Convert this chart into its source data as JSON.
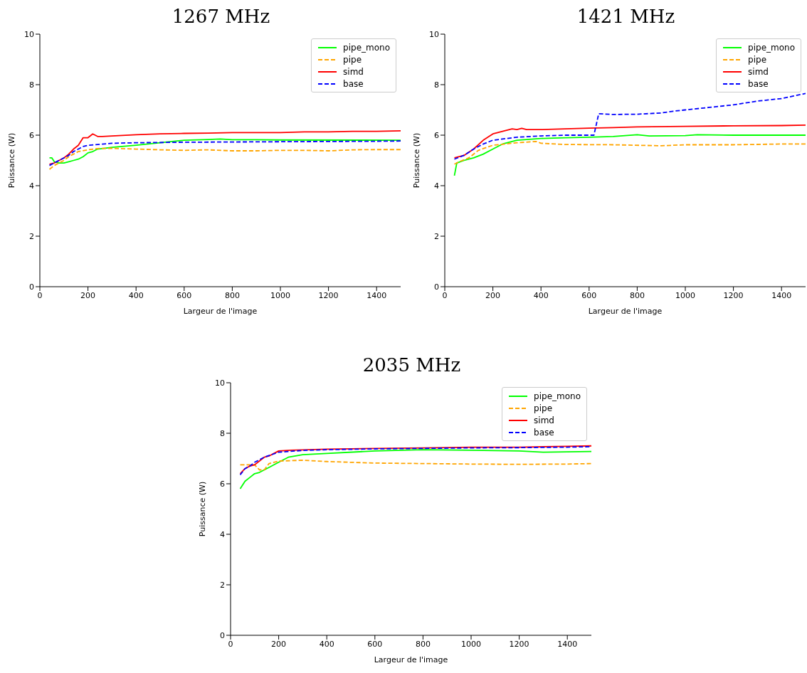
{
  "chart_data": [
    {
      "type": "line",
      "title": "1267 MHz",
      "xlabel": "Largeur de l'image",
      "ylabel": "Puissance (W)",
      "xlim": [
        0,
        1500
      ],
      "xticks": [
        0,
        200,
        400,
        600,
        800,
        1000,
        1200,
        1400
      ],
      "ylim": [
        0,
        10
      ],
      "yticks": [
        0,
        2,
        4,
        6,
        8,
        10
      ],
      "grid": false,
      "legend": "top right",
      "marker": "none",
      "series": [
        {
          "name": "pipe_mono",
          "color": "#00ff00",
          "line_style": "solid",
          "x": [
            40,
            50,
            60,
            80,
            100,
            120,
            140,
            160,
            180,
            200,
            220,
            240,
            300,
            400,
            500,
            600,
            700,
            750,
            800,
            900,
            1000,
            1500
          ],
          "values": [
            5.1,
            5.1,
            4.95,
            4.9,
            4.9,
            4.95,
            5.0,
            5.05,
            5.15,
            5.3,
            5.35,
            5.45,
            5.52,
            5.6,
            5.7,
            5.8,
            5.83,
            5.85,
            5.82,
            5.82,
            5.81,
            5.8
          ]
        },
        {
          "name": "pipe",
          "color": "#ffa500",
          "line_style": "dashed",
          "x": [
            40,
            60,
            80,
            100,
            120,
            140,
            160,
            200,
            240,
            300,
            400,
            500,
            600,
            700,
            800,
            900,
            1000,
            1100,
            1200,
            1300,
            1400,
            1500
          ],
          "values": [
            4.65,
            4.8,
            4.9,
            5.0,
            5.15,
            5.25,
            5.35,
            5.42,
            5.47,
            5.48,
            5.45,
            5.42,
            5.4,
            5.42,
            5.38,
            5.38,
            5.4,
            5.4,
            5.38,
            5.42,
            5.43,
            5.43
          ]
        },
        {
          "name": "simd",
          "color": "#ff0000",
          "line_style": "solid",
          "x": [
            40,
            60,
            80,
            100,
            120,
            140,
            160,
            180,
            200,
            220,
            240,
            260,
            300,
            400,
            500,
            600,
            700,
            800,
            900,
            1000,
            1100,
            1200,
            1300,
            1400,
            1500
          ],
          "values": [
            4.85,
            4.9,
            5.0,
            5.1,
            5.25,
            5.45,
            5.6,
            5.9,
            5.9,
            6.05,
            5.95,
            5.95,
            5.97,
            6.02,
            6.05,
            6.07,
            6.08,
            6.1,
            6.1,
            6.1,
            6.13,
            6.13,
            6.15,
            6.15,
            6.17
          ]
        },
        {
          "name": "base",
          "color": "#0000ff",
          "line_style": "dashed",
          "x": [
            40,
            60,
            80,
            100,
            120,
            140,
            160,
            180,
            200,
            240,
            300,
            400,
            600,
            800,
            1000,
            1200,
            1400,
            1500
          ],
          "values": [
            4.8,
            4.9,
            5.0,
            5.1,
            5.2,
            5.35,
            5.45,
            5.55,
            5.6,
            5.63,
            5.68,
            5.7,
            5.72,
            5.73,
            5.74,
            5.75,
            5.76,
            5.77
          ]
        }
      ]
    },
    {
      "type": "line",
      "title": "1421 MHz",
      "xlabel": "Largeur de l'image",
      "ylabel": "Puissance (W)",
      "xlim": [
        0,
        1500
      ],
      "xticks": [
        0,
        200,
        400,
        600,
        800,
        1000,
        1200,
        1400
      ],
      "ylim": [
        0,
        10
      ],
      "yticks": [
        0,
        2,
        4,
        6,
        8,
        10
      ],
      "grid": false,
      "legend": "top right",
      "marker": "none",
      "series": [
        {
          "name": "pipe_mono",
          "color": "#00ff00",
          "line_style": "solid",
          "x": [
            40,
            50,
            80,
            120,
            160,
            200,
            240,
            300,
            400,
            500,
            600,
            700,
            800,
            850,
            1000,
            1050,
            1200,
            1400,
            1500
          ],
          "values": [
            4.4,
            4.9,
            5.0,
            5.1,
            5.25,
            5.45,
            5.65,
            5.8,
            5.87,
            5.9,
            5.92,
            5.95,
            6.02,
            5.97,
            5.98,
            6.02,
            6.0,
            6.0,
            6.0
          ]
        },
        {
          "name": "pipe",
          "color": "#ffa500",
          "line_style": "dashed",
          "x": [
            40,
            60,
            100,
            140,
            200,
            300,
            380,
            400,
            500,
            700,
            900,
            1000,
            1200,
            1400,
            1500
          ],
          "values": [
            4.85,
            4.95,
            5.1,
            5.4,
            5.6,
            5.7,
            5.75,
            5.68,
            5.63,
            5.62,
            5.58,
            5.62,
            5.62,
            5.65,
            5.65
          ]
        },
        {
          "name": "simd",
          "color": "#ff0000",
          "line_style": "solid",
          "x": [
            40,
            80,
            120,
            160,
            200,
            240,
            280,
            300,
            320,
            340,
            400,
            500,
            600,
            700,
            800,
            1000,
            1200,
            1400,
            1500
          ],
          "values": [
            5.1,
            5.2,
            5.45,
            5.8,
            6.05,
            6.15,
            6.25,
            6.22,
            6.27,
            6.22,
            6.22,
            6.25,
            6.28,
            6.3,
            6.33,
            6.35,
            6.37,
            6.38,
            6.4
          ]
        },
        {
          "name": "base",
          "color": "#0000ff",
          "line_style": "dashed",
          "x": [
            40,
            80,
            120,
            160,
            200,
            300,
            400,
            500,
            600,
            620,
            640,
            700,
            800,
            900,
            950,
            1000,
            1100,
            1200,
            1300,
            1400,
            1450,
            1500
          ],
          "values": [
            5.05,
            5.2,
            5.45,
            5.65,
            5.8,
            5.92,
            5.97,
            6.0,
            6.0,
            6.0,
            6.85,
            6.82,
            6.83,
            6.88,
            6.95,
            7.0,
            7.1,
            7.2,
            7.35,
            7.45,
            7.55,
            7.65
          ]
        }
      ]
    },
    {
      "type": "line",
      "title": "2035 MHz",
      "xlabel": "Largeur de l'image",
      "ylabel": "Puissance (W)",
      "xlim": [
        0,
        1500
      ],
      "xticks": [
        0,
        200,
        400,
        600,
        800,
        1000,
        1200,
        1400
      ],
      "ylim": [
        0,
        10
      ],
      "yticks": [
        0,
        2,
        4,
        6,
        8,
        10
      ],
      "grid": false,
      "legend": "top right",
      "marker": "none",
      "series": [
        {
          "name": "pipe_mono",
          "color": "#00ff00",
          "line_style": "solid",
          "x": [
            40,
            60,
            80,
            100,
            120,
            140,
            160,
            200,
            240,
            300,
            400,
            600,
            800,
            1000,
            1200,
            1300,
            1500
          ],
          "values": [
            5.8,
            6.1,
            6.25,
            6.4,
            6.45,
            6.55,
            6.65,
            6.85,
            7.05,
            7.15,
            7.2,
            7.3,
            7.35,
            7.33,
            7.3,
            7.25,
            7.28
          ]
        },
        {
          "name": "pipe",
          "color": "#ffa500",
          "line_style": "dashed",
          "x": [
            40,
            100,
            120,
            140,
            160,
            200,
            300,
            400,
            600,
            800,
            1000,
            1200,
            1400,
            1500
          ],
          "values": [
            6.75,
            6.75,
            6.55,
            6.55,
            6.8,
            6.9,
            6.93,
            6.88,
            6.82,
            6.8,
            6.78,
            6.77,
            6.78,
            6.8
          ]
        },
        {
          "name": "simd",
          "color": "#ff0000",
          "line_style": "solid",
          "x": [
            40,
            60,
            80,
            100,
            120,
            140,
            160,
            180,
            200,
            250,
            400,
            600,
            800,
            1000,
            1200,
            1400,
            1500
          ],
          "values": [
            6.4,
            6.6,
            6.7,
            6.75,
            6.9,
            7.05,
            7.1,
            7.2,
            7.3,
            7.33,
            7.37,
            7.4,
            7.42,
            7.45,
            7.45,
            7.48,
            7.5
          ]
        },
        {
          "name": "base",
          "color": "#0000ff",
          "line_style": "dashed",
          "x": [
            40,
            60,
            80,
            100,
            140,
            200,
            300,
            400,
            600,
            800,
            1000,
            1200,
            1400,
            1500
          ],
          "values": [
            6.35,
            6.6,
            6.7,
            6.85,
            7.05,
            7.25,
            7.32,
            7.35,
            7.38,
            7.4,
            7.42,
            7.43,
            7.45,
            7.47
          ]
        }
      ]
    }
  ]
}
